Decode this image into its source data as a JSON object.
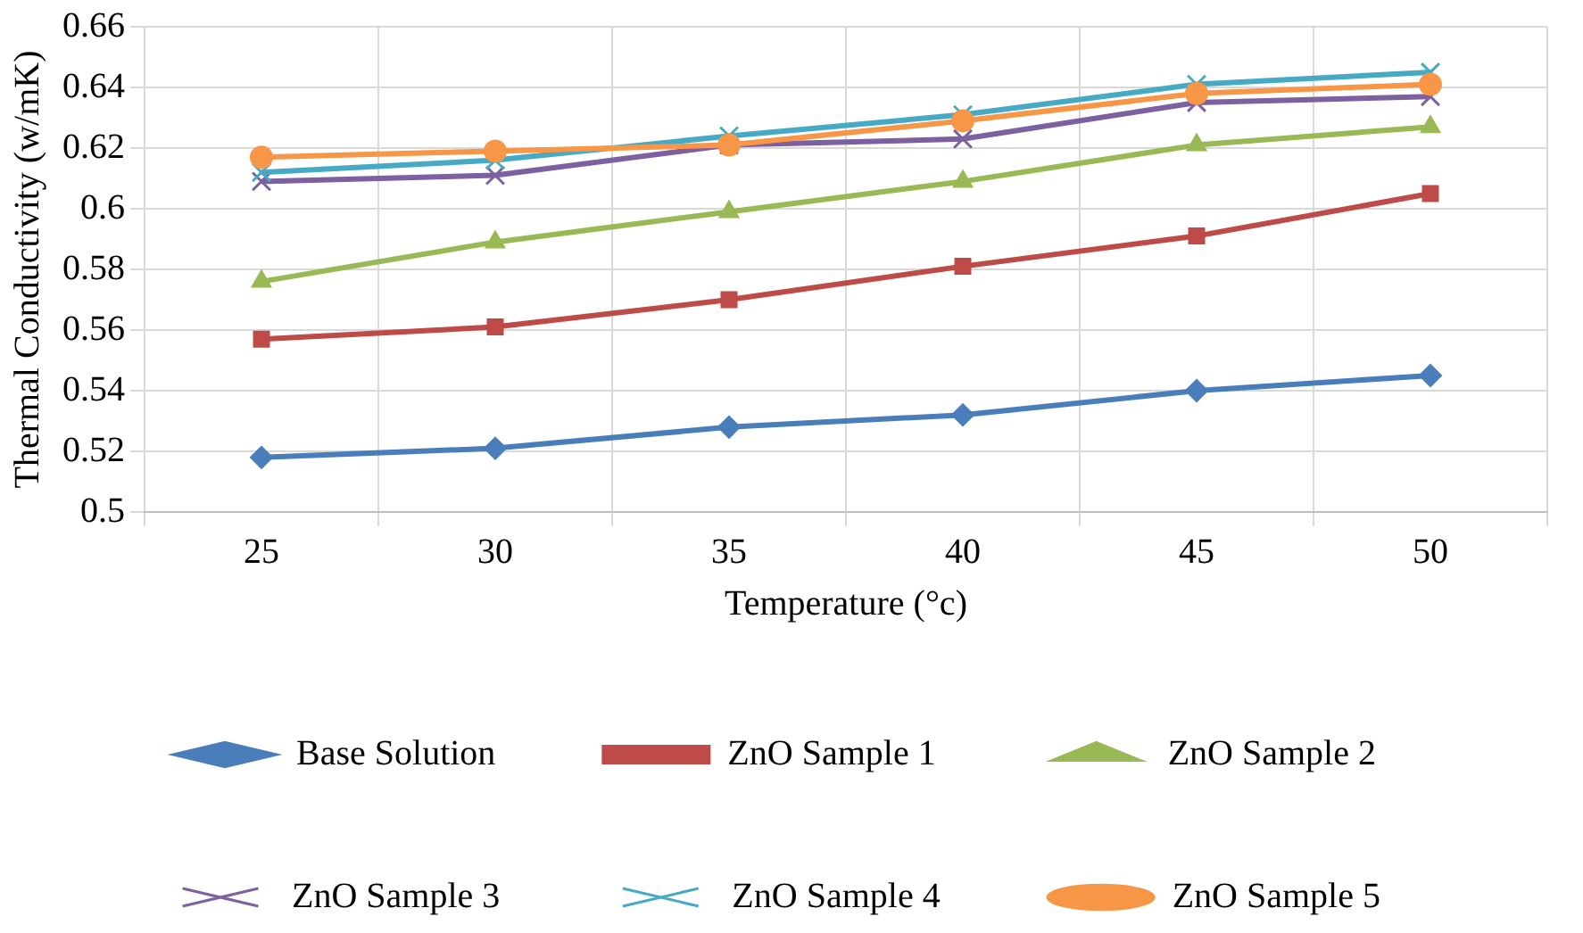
{
  "chart_data": {
    "type": "line",
    "xlabel": "Temperature (°c)",
    "ylabel": "Thermal Conductivity (w/mK)",
    "categories": [
      "25",
      "30",
      "35",
      "40",
      "45",
      "50"
    ],
    "ylim": [
      0.5,
      0.66
    ],
    "yticks": [
      0.5,
      0.52,
      0.54,
      0.56,
      0.58,
      0.6,
      0.62,
      0.64,
      0.66
    ],
    "grid": true,
    "legend": "bottom",
    "line_style": "solid",
    "series": [
      {
        "name": "Base Solution",
        "color": "#4a7ebb",
        "marker": "diamond",
        "values": [
          0.518,
          0.521,
          0.528,
          0.532,
          0.54,
          0.545
        ]
      },
      {
        "name": "ZnO Sample 1",
        "color": "#be4b48",
        "marker": "square",
        "values": [
          0.557,
          0.561,
          0.57,
          0.581,
          0.591,
          0.605
        ]
      },
      {
        "name": "ZnO Sample 2",
        "color": "#98b954",
        "marker": "triangle",
        "values": [
          0.576,
          0.589,
          0.599,
          0.609,
          0.621,
          0.627
        ]
      },
      {
        "name": "ZnO Sample 3",
        "color": "#7d60a0",
        "marker": "cross",
        "values": [
          0.609,
          0.611,
          0.621,
          0.623,
          0.635,
          0.637
        ]
      },
      {
        "name": "ZnO Sample 4",
        "color": "#46aac5",
        "marker": "cross",
        "values": [
          0.612,
          0.616,
          0.624,
          0.631,
          0.641,
          0.645
        ]
      },
      {
        "name": "ZnO Sample 5",
        "color": "#f79646",
        "marker": "circle",
        "values": [
          0.617,
          0.619,
          0.621,
          0.629,
          0.638,
          0.641
        ]
      }
    ]
  }
}
